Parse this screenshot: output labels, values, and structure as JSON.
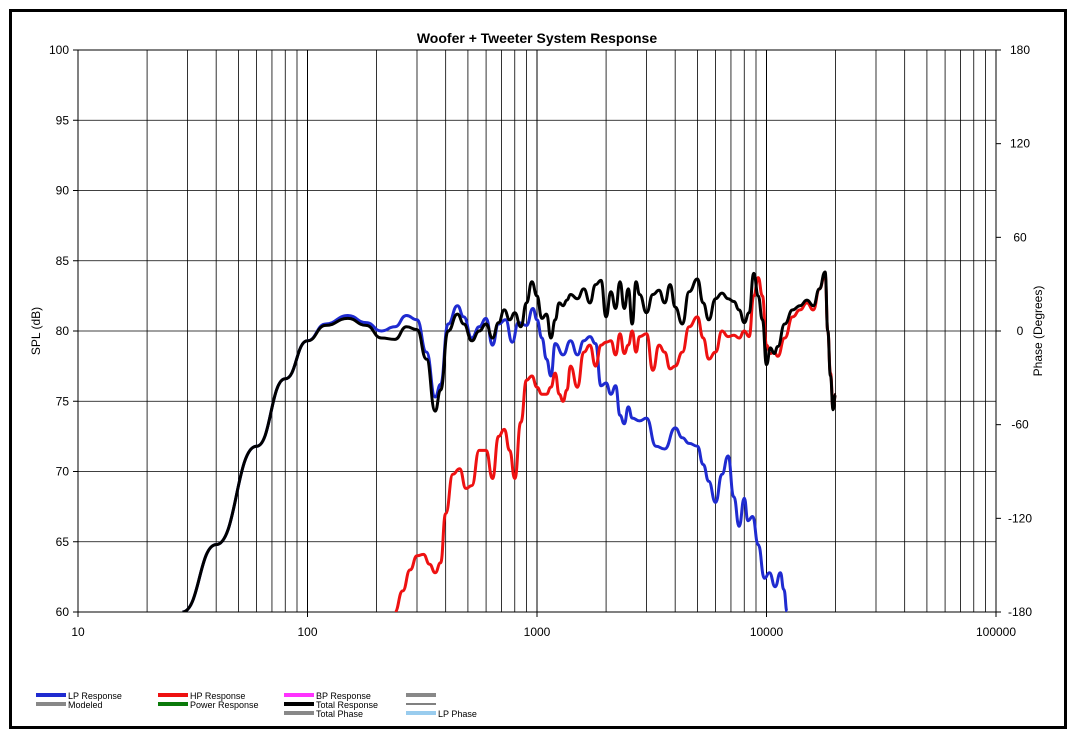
{
  "chart_data": {
    "type": "line",
    "title": "Woofer + Tweeter    System Response",
    "xlabel": "",
    "ylabel": "SPL (dB)",
    "y2label": "Phase (Degrees)",
    "x_scale": "log",
    "xlim": [
      10,
      100000
    ],
    "ylim": [
      60,
      100
    ],
    "y2lim": [
      -180,
      180
    ],
    "x_ticks": [
      "10",
      "100",
      "1000",
      "10000",
      "100000"
    ],
    "y_ticks": [
      "60",
      "65",
      "70",
      "75",
      "80",
      "85",
      "90",
      "95",
      "100"
    ],
    "y2_ticks": [
      "-180",
      "-120",
      "-60",
      "0",
      "60",
      "120",
      "180"
    ],
    "grid": true,
    "legend_position": "bottom",
    "legend": [
      {
        "name": "LP Response",
        "color": "#1f2bd0"
      },
      {
        "name": "Modeled",
        "color": "#888888"
      },
      {
        "name": "HP Response",
        "color": "#ee1111"
      },
      {
        "name": "Power Response",
        "color": "#0a7a0a"
      },
      {
        "name": "BP Response",
        "color": "#ff33ff"
      },
      {
        "name": "Total Response",
        "color": "#000000"
      },
      {
        "name": "Total Phase",
        "color": "#888888"
      },
      {
        "name": "",
        "color": "#888888"
      },
      {
        "name": "",
        "color": "#000000"
      },
      {
        "name": "LP Phase",
        "color": "#99ccee"
      }
    ],
    "series": [
      {
        "name": "LP Response",
        "color": "#1f2bd0",
        "x": [
          28.5,
          40,
          60,
          80,
          100,
          120,
          150,
          180,
          210,
          240,
          270,
          300,
          330,
          360,
          380,
          410,
          450,
          480,
          520,
          560,
          600,
          640,
          680,
          730,
          780,
          830,
          900,
          960,
          1000,
          1050,
          1100,
          1150,
          1200,
          1300,
          1400,
          1500,
          1600,
          1700,
          1800,
          1900,
          2000,
          2100,
          2200,
          2300,
          2400,
          2500,
          2600,
          2800,
          3000,
          3300,
          3600,
          4000,
          4300,
          4600,
          5000,
          5300,
          5600,
          6000,
          6400,
          6800,
          7200,
          7600,
          8000,
          8300,
          8700,
          9200,
          9800,
          10300,
          10900,
          11500,
          11900,
          12300
        ],
        "y": [
          60,
          64.8,
          71.8,
          76.6,
          79.3,
          80.5,
          81.1,
          80.6,
          80.0,
          80.3,
          81.1,
          80.8,
          78.5,
          75.3,
          76.2,
          80.5,
          81.8,
          81.0,
          79.5,
          80.3,
          80.9,
          79.0,
          80.5,
          80.8,
          79.2,
          80.6,
          80.4,
          81.6,
          80.8,
          79.5,
          78.0,
          76.8,
          79.1,
          78.3,
          79.3,
          78.3,
          79.3,
          79.6,
          79.1,
          76.1,
          76.3,
          75.5,
          76.1,
          74.0,
          73.4,
          74.6,
          73.8,
          73.6,
          73.8,
          71.8,
          71.6,
          73.1,
          72.4,
          72.0,
          71.8,
          70.5,
          69.3,
          67.8,
          69.8,
          71.1,
          68.2,
          66.1,
          68.1,
          66.5,
          66.8,
          64.8,
          62.4,
          62.8,
          61.8,
          62.8,
          61.6,
          60
        ]
      },
      {
        "name": "HP Response",
        "color": "#ee1111",
        "x": [
          240,
          260,
          280,
          300,
          320,
          340,
          360,
          380,
          400,
          430,
          460,
          490,
          520,
          560,
          600,
          640,
          680,
          720,
          760,
          800,
          850,
          900,
          950,
          1000,
          1050,
          1100,
          1150,
          1200,
          1250,
          1300,
          1350,
          1400,
          1500,
          1600,
          1700,
          1800,
          1900,
          2000,
          2100,
          2200,
          2300,
          2400,
          2500,
          2600,
          2700,
          2800,
          3000,
          3200,
          3400,
          3600,
          3800,
          4000,
          4300,
          4600,
          5000,
          5300,
          5600,
          6000,
          6400,
          6800,
          7200,
          7600,
          8000,
          8400,
          8800,
          9200,
          9600,
          10000,
          10400,
          10800,
          11200,
          12000,
          13000,
          14000,
          15000,
          16000,
          17000,
          18000,
          18500,
          19000,
          19500,
          20000
        ],
        "y": [
          60,
          61.5,
          63.0,
          64.0,
          64.1,
          63.4,
          62.8,
          63.5,
          67.0,
          69.8,
          70.2,
          68.8,
          69.0,
          71.5,
          71.5,
          69.5,
          72.5,
          73.0,
          71.5,
          69.5,
          73.5,
          76.5,
          76.8,
          76.0,
          75.5,
          75.5,
          76.0,
          77.0,
          75.5,
          75.0,
          75.8,
          77.5,
          76.0,
          78.5,
          79.0,
          77.5,
          79.0,
          79.2,
          79.3,
          78.3,
          79.8,
          78.4,
          79.0,
          80.0,
          78.5,
          79.6,
          79.8,
          77.2,
          79.0,
          78.5,
          77.3,
          77.5,
          78.5,
          80.3,
          81.0,
          79.5,
          78.0,
          78.5,
          80.0,
          79.6,
          79.7,
          79.5,
          80.0,
          79.6,
          82.5,
          83.8,
          82.5,
          79.0,
          78.4,
          78.5,
          78.2,
          79.5,
          81.0,
          81.5,
          82.0,
          81.5,
          83.0,
          84.0,
          80.0,
          77.0,
          74.5,
          75.5
        ]
      },
      {
        "name": "Total Response",
        "color": "#000000",
        "x": [
          28.5,
          40,
          60,
          80,
          100,
          120,
          150,
          180,
          210,
          240,
          270,
          300,
          330,
          360,
          380,
          410,
          450,
          480,
          520,
          560,
          600,
          640,
          680,
          720,
          760,
          800,
          850,
          900,
          950,
          1000,
          1050,
          1100,
          1150,
          1200,
          1250,
          1300,
          1350,
          1400,
          1500,
          1600,
          1700,
          1800,
          1900,
          2000,
          2100,
          2200,
          2300,
          2400,
          2500,
          2600,
          2700,
          2800,
          3000,
          3200,
          3400,
          3600,
          3800,
          4000,
          4300,
          4600,
          5000,
          5300,
          5600,
          6000,
          6400,
          6800,
          7200,
          7600,
          8000,
          8400,
          8800,
          9200,
          9600,
          10000,
          10400,
          10800,
          11200,
          12000,
          13000,
          14000,
          15000,
          16000,
          17000,
          18000,
          18500,
          19000,
          19500,
          20000
        ],
        "y": [
          60,
          64.8,
          71.8,
          76.6,
          79.3,
          80.4,
          80.9,
          80.4,
          79.5,
          79.4,
          80.3,
          80.1,
          78.0,
          74.3,
          75.8,
          80.0,
          81.2,
          80.5,
          79.3,
          80.0,
          80.5,
          79.5,
          80.6,
          81.5,
          80.8,
          81.3,
          80.3,
          82.0,
          83.5,
          82.5,
          80.9,
          81.2,
          79.5,
          80.8,
          82.0,
          81.8,
          82.2,
          82.6,
          82.3,
          83.0,
          82.0,
          83.3,
          83.6,
          81.0,
          82.8,
          81.6,
          83.5,
          81.6,
          83.0,
          80.5,
          83.5,
          82.6,
          81.3,
          82.6,
          82.9,
          82.0,
          83.3,
          81.7,
          80.5,
          82.8,
          83.7,
          82.0,
          80.8,
          82.3,
          82.7,
          82.3,
          82.1,
          81.5,
          80.6,
          81.3,
          84.1,
          82.5,
          80.8,
          77.6,
          78.8,
          78.4,
          78.9,
          80.5,
          81.5,
          81.8,
          82.2,
          81.8,
          83.0,
          84.2,
          80.0,
          76.8,
          74.4,
          75.5
        ]
      }
    ]
  }
}
